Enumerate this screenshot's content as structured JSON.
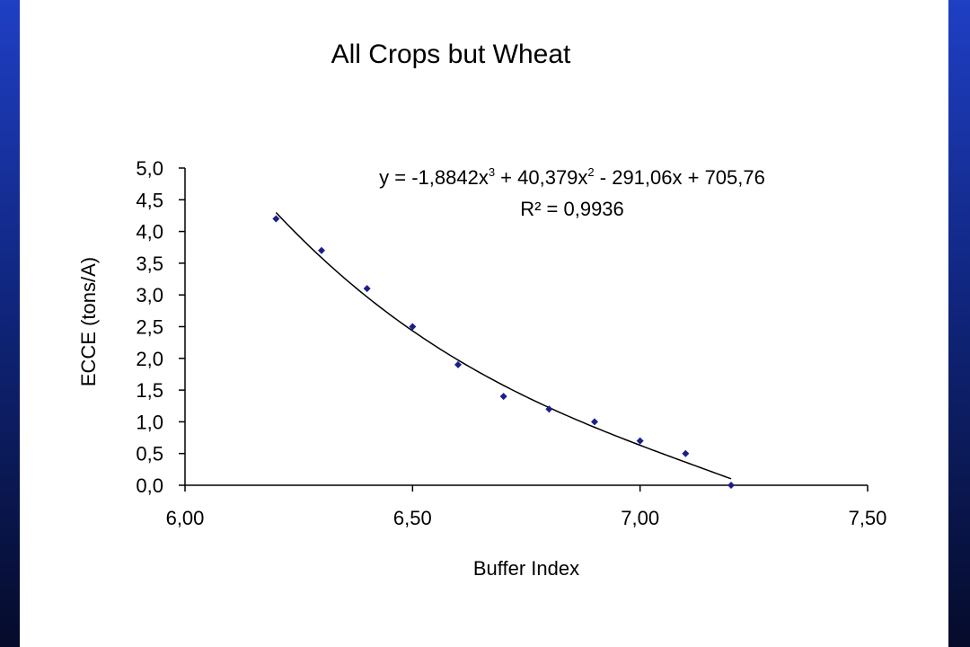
{
  "colors": {
    "background_gradient": [
      "#1f3fc4",
      "#050b2a"
    ],
    "plot_area": "#ffffff",
    "marker": "#1b1f8c",
    "trendline": "#000000"
  },
  "chart_data": {
    "type": "scatter",
    "title": "All Crops but Wheat",
    "xlabel": "Buffer Index",
    "ylabel": "ECCE (tons/A)",
    "xlim": [
      6.0,
      7.5
    ],
    "ylim": [
      0.0,
      5.0
    ],
    "x_ticks": [
      "6,00",
      "6,50",
      "7,00",
      "7,50"
    ],
    "y_ticks": [
      "0,0",
      "0,5",
      "1,0",
      "1,5",
      "2,0",
      "2,5",
      "3,0",
      "3,5",
      "4,0",
      "4,5",
      "5,0"
    ],
    "grid": false,
    "marker": "diamond",
    "series": [
      {
        "x": [
          6.2,
          6.3,
          6.4,
          6.5,
          6.6,
          6.7,
          6.8,
          6.9,
          7.0,
          7.1,
          7.2
        ],
        "y": [
          4.2,
          3.7,
          3.1,
          2.5,
          1.9,
          1.4,
          1.2,
          1.0,
          0.7,
          0.5,
          0.0
        ]
      }
    ],
    "trendline": {
      "type": "polynomial",
      "order": 3,
      "coefficients": [
        -1.8842,
        40.379,
        -291.06,
        705.76
      ],
      "x_range": [
        6.2,
        7.2
      ],
      "equation_parts": {
        "prefix": "y = -1,8842x",
        "exp1": "3",
        "middle": " + 40,379x",
        "exp2": "2",
        "suffix": " - 291,06x + 705,76"
      },
      "r_squared_label": "R² = 0,9936"
    }
  }
}
